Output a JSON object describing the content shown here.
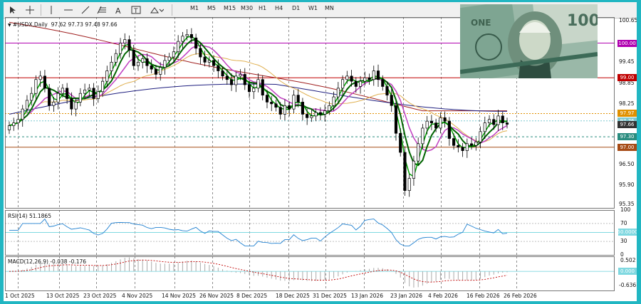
{
  "toolbar": {
    "timeframes": [
      "M1",
      "M5",
      "M15",
      "M30",
      "H1",
      "H4",
      "D1",
      "W1",
      "MN"
    ],
    "tools": [
      "cursor-icon",
      "crosshair-icon",
      "vertical-line-icon",
      "horizontal-line-icon",
      "trendline-icon",
      "fibonacci-icon",
      "text-icon",
      "text-label-icon",
      "shapes-icon"
    ]
  },
  "chart": {
    "title": "#USDX,Daily",
    "ohlc": "97.62 97.73 97.48 97.66",
    "price_axis": [
      "100.65",
      "100.00",
      "99.45",
      "99.00",
      "98.85",
      "98.25",
      "97.97",
      "97.76",
      "97.66",
      "97.30",
      "97.00",
      "96.50",
      "95.90",
      "95.35"
    ],
    "price_labels": [
      {
        "text": "100.00",
        "color": "#b000b0"
      },
      {
        "text": "99.00",
        "color": "#c00000"
      },
      {
        "text": "97.97",
        "color": "#e09000"
      },
      {
        "text": "97.76",
        "color": "#7fc8d0"
      },
      {
        "text": "97.66",
        "color": "#333333"
      },
      {
        "text": "97.30",
        "color": "#2a8c7f"
      },
      {
        "text": "97.00",
        "color": "#a64b16"
      }
    ],
    "date_axis": [
      "1 Oct 2025",
      "13 Oct 2025",
      "23 Oct 2025",
      "4 Nov 2025",
      "14 Nov 2025",
      "26 Nov 2025",
      "8 Dec 2025",
      "18 Dec 2025",
      "31 Dec 2025",
      "13 Jan 2026",
      "23 Jan 2026",
      "4 Feb 2026",
      "16 Feb 2026",
      "26 Feb 2026"
    ]
  },
  "rsi": {
    "title": "RSI(14) 51.1865",
    "axis": [
      "100",
      "70",
      "50",
      "30",
      "0"
    ],
    "level_label": "50.0000"
  },
  "macd": {
    "title": "MACD(12,26,9) -0.038 -0.176",
    "axis": [
      "0.502",
      "-0.636"
    ],
    "zero_label": "0.000"
  },
  "colors": {
    "background_border": "#21b6c2",
    "bull_candle": "#ffffff",
    "bear_candle": "#000000",
    "ma_fast": "#00a000",
    "ma_mid": "#006400",
    "ma_purple": "#c040c0",
    "ma_gold": "#e0b050",
    "ma_red": "#a02020",
    "ma_navy": "#202080",
    "rsi_line": "#2080d0",
    "macd_signal": "#c00000"
  },
  "image": {
    "subject": "dollar-bill-image"
  }
}
